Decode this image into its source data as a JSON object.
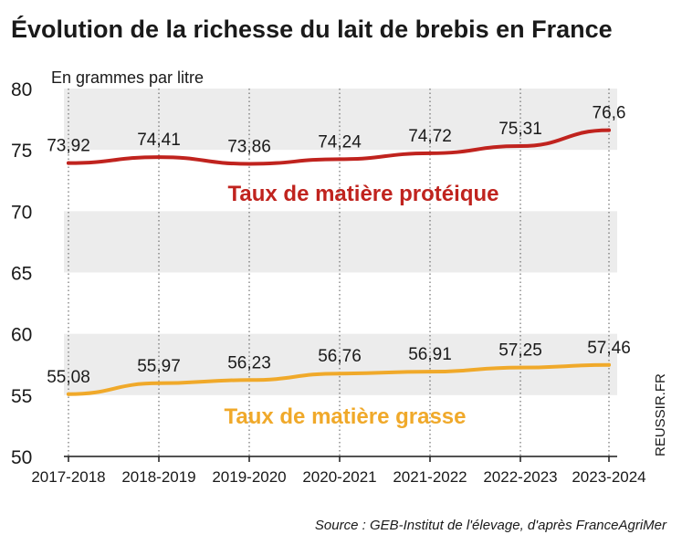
{
  "colors": {
    "protein": "#c0231e",
    "fat": "#f0a92a",
    "band": "#ececec",
    "text": "#1a1a1a"
  },
  "chart_data": {
    "type": "line",
    "title": "Évolution de la richesse du lait de brebis en France",
    "ylabel": "En grammes par litre",
    "xlabel": "",
    "categories": [
      "2017-2018",
      "2018-2019",
      "2019-2020",
      "2020-2021",
      "2021-2022",
      "2022-2023",
      "2023-2024"
    ],
    "ylim": [
      50,
      80
    ],
    "yticks": [
      50,
      55,
      60,
      65,
      70,
      75,
      80
    ],
    "series": [
      {
        "name": "Taux de matière protéique",
        "values": [
          73.92,
          74.41,
          73.86,
          74.24,
          74.72,
          75.31,
          76.6
        ],
        "labels": [
          "73,92",
          "74,41",
          "73,86",
          "74,24",
          "74,72",
          "75,31",
          "76,6"
        ]
      },
      {
        "name": "Taux de matière grasse",
        "values": [
          55.08,
          55.97,
          56.23,
          56.76,
          56.91,
          57.25,
          57.46
        ],
        "labels": [
          "55,08",
          "55,97",
          "56,23",
          "56,76",
          "56,91",
          "57,25",
          "57,46"
        ]
      }
    ],
    "source": "Source : GEB-Institut de l'élevage, d'après FranceAgriMer",
    "credit": "REUSSIR.FR"
  }
}
